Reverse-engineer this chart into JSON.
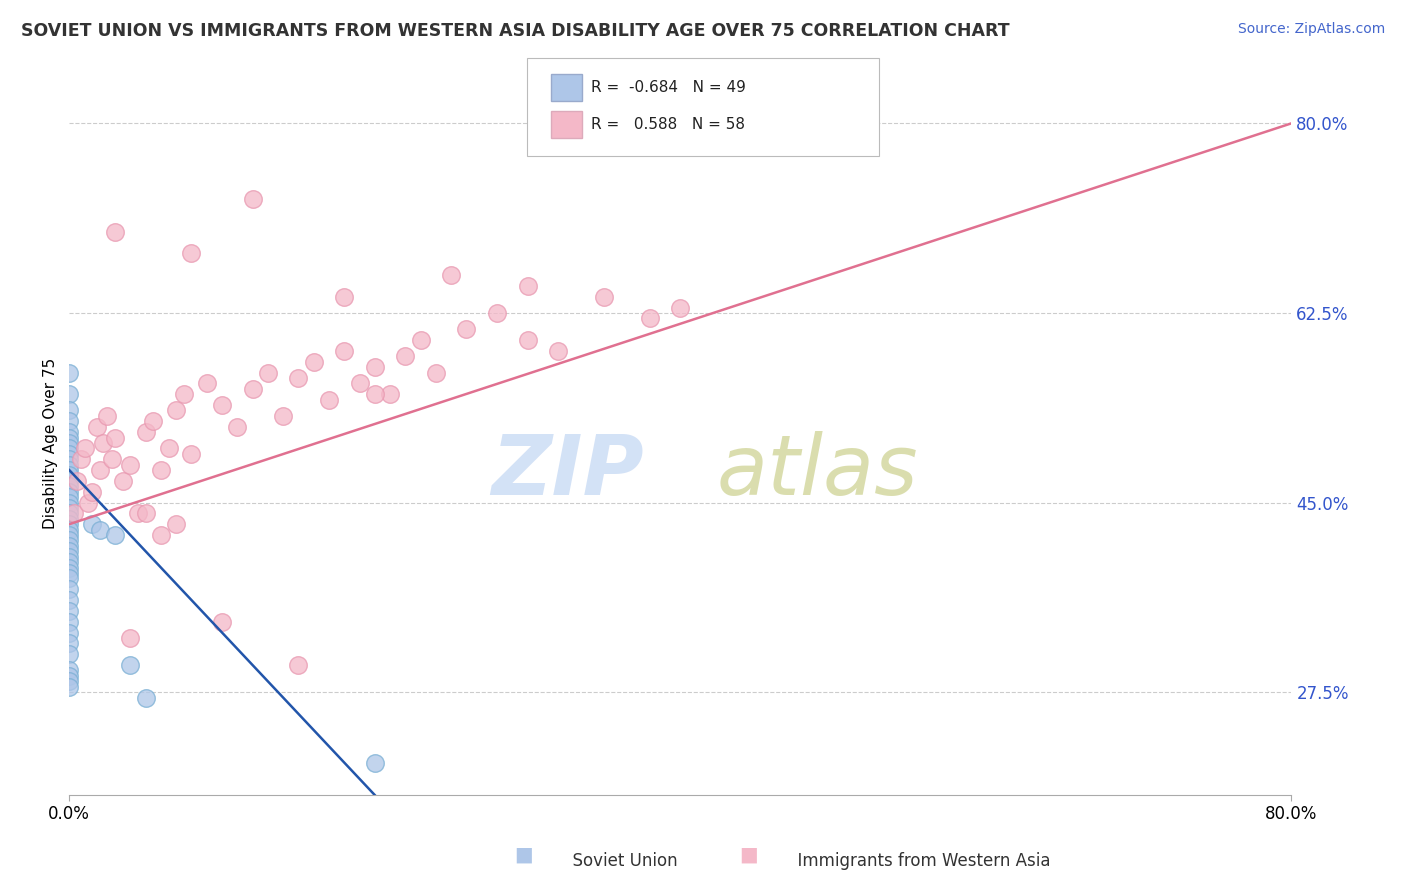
{
  "title": "SOVIET UNION VS IMMIGRANTS FROM WESTERN ASIA DISABILITY AGE OVER 75 CORRELATION CHART",
  "source": "Source: ZipAtlas.com",
  "ylabel": "Disability Age Over 75",
  "xlim": [
    0.0,
    80.0
  ],
  "ylim": [
    18.0,
    83.0
  ],
  "xticks": [
    0.0,
    80.0
  ],
  "xtick_labels": [
    "0.0%",
    "80.0%"
  ],
  "ytick_positions": [
    27.5,
    45.0,
    62.5,
    80.0
  ],
  "ytick_labels": [
    "27.5%",
    "45.0%",
    "62.5%",
    "80.0%"
  ],
  "grid_color": "#cccccc",
  "background_color": "#ffffff",
  "legend_R1": "-0.684",
  "legend_N1": "49",
  "legend_R2": "0.588",
  "legend_N2": "58",
  "series1_color": "#aec6e8",
  "series1_edge_color": "#7aafd4",
  "series1_line_color": "#2255aa",
  "series2_color": "#f4b8c8",
  "series2_edge_color": "#e898b0",
  "series2_line_color": "#e07090",
  "soviet_x": [
    0.0,
    0.0,
    0.0,
    0.0,
    0.0,
    0.0,
    0.0,
    0.0,
    0.0,
    0.0,
    0.0,
    0.0,
    0.0,
    0.0,
    0.0,
    0.0,
    0.0,
    0.0,
    0.0,
    0.0,
    0.0,
    0.0,
    0.0,
    0.0,
    0.0,
    0.0,
    0.0,
    0.0,
    0.0,
    0.0,
    0.0,
    0.0,
    0.0,
    0.0,
    0.0,
    0.0,
    0.0,
    0.0,
    0.0,
    0.0,
    0.0,
    0.0,
    0.0,
    1.5,
    2.0,
    3.0,
    4.0,
    5.0,
    20.0
  ],
  "soviet_y": [
    57.0,
    55.0,
    53.5,
    52.5,
    51.5,
    51.0,
    50.5,
    50.0,
    49.5,
    49.0,
    48.5,
    48.0,
    47.5,
    47.0,
    46.5,
    46.0,
    45.5,
    45.0,
    44.5,
    44.0,
    43.5,
    43.0,
    42.5,
    42.0,
    41.5,
    41.0,
    40.5,
    40.0,
    39.5,
    39.0,
    38.5,
    38.0,
    37.0,
    36.0,
    35.0,
    34.0,
    33.0,
    32.0,
    31.0,
    29.5,
    29.0,
    28.5,
    28.0,
    43.0,
    42.5,
    42.0,
    30.0,
    27.0,
    21.0
  ],
  "western_asia_x": [
    0.3,
    0.5,
    0.8,
    1.0,
    1.2,
    1.5,
    1.8,
    2.0,
    2.2,
    2.5,
    2.8,
    3.0,
    3.5,
    4.0,
    4.5,
    5.0,
    5.5,
    6.0,
    6.5,
    7.0,
    7.5,
    8.0,
    9.0,
    10.0,
    11.0,
    12.0,
    13.0,
    14.0,
    15.0,
    16.0,
    17.0,
    18.0,
    19.0,
    20.0,
    21.0,
    22.0,
    23.0,
    24.0,
    26.0,
    28.0,
    30.0,
    32.0,
    35.0,
    38.0,
    40.0,
    18.0,
    25.0,
    8.0,
    12.0,
    5.0,
    7.0,
    10.0,
    4.0,
    6.0,
    3.0,
    15.0,
    20.0,
    30.0
  ],
  "western_asia_y": [
    44.0,
    47.0,
    49.0,
    50.0,
    45.0,
    46.0,
    52.0,
    48.0,
    50.5,
    53.0,
    49.0,
    51.0,
    47.0,
    48.5,
    44.0,
    51.5,
    52.5,
    48.0,
    50.0,
    53.5,
    55.0,
    49.5,
    56.0,
    54.0,
    52.0,
    55.5,
    57.0,
    53.0,
    56.5,
    58.0,
    54.5,
    59.0,
    56.0,
    57.5,
    55.0,
    58.5,
    60.0,
    57.0,
    61.0,
    62.5,
    60.0,
    59.0,
    64.0,
    62.0,
    63.0,
    64.0,
    66.0,
    68.0,
    73.0,
    44.0,
    43.0,
    34.0,
    32.5,
    42.0,
    70.0,
    30.0,
    55.0,
    65.0
  ],
  "soviet_line_x0": 0.0,
  "soviet_line_y0": 48.0,
  "soviet_line_x1": 20.0,
  "soviet_line_y1": 18.0,
  "western_line_x0": 0.0,
  "western_line_y0": 43.0,
  "western_line_x1": 80.0,
  "western_line_y1": 80.0
}
